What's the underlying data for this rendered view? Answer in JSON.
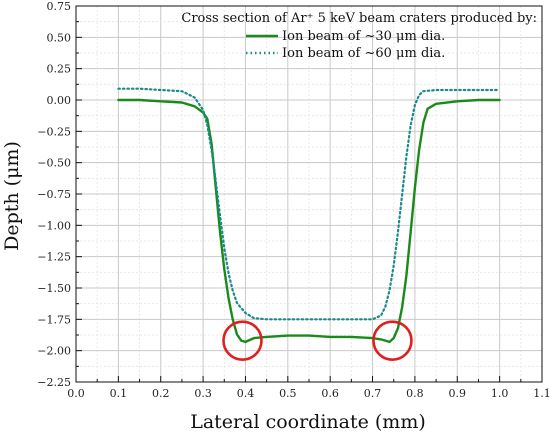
{
  "chart_data": {
    "type": "line",
    "title": "",
    "xlabel": "Lateral coordinate (mm)",
    "ylabel": "Depth (μm)",
    "xlim": [
      0.0,
      1.1
    ],
    "ylim": [
      -2.25,
      0.75
    ],
    "x_ticks": [
      "0.0",
      "0.1",
      "0.2",
      "0.3",
      "0.4",
      "0.5",
      "0.6",
      "0.7",
      "0.8",
      "0.9",
      "1.0",
      "1.1"
    ],
    "y_ticks": [
      "0.75",
      "0.50",
      "0.25",
      "0.00",
      "−0.25",
      "−0.50",
      "−0.75",
      "−1.00",
      "−1.25",
      "−1.50",
      "−1.75",
      "−2.00",
      "−2.25"
    ],
    "grid": true,
    "legend": {
      "title": "Cross section of Ar⁺ 5 keV beam craters produced by:",
      "placement": "top-right"
    },
    "series": [
      {
        "name": "Ion beam of ~30 μm dia.",
        "color": "#1a8a1a",
        "style": "solid",
        "x": [
          0.1,
          0.15,
          0.2,
          0.25,
          0.28,
          0.3,
          0.31,
          0.32,
          0.33,
          0.34,
          0.35,
          0.36,
          0.37,
          0.38,
          0.39,
          0.4,
          0.42,
          0.45,
          0.5,
          0.55,
          0.6,
          0.65,
          0.7,
          0.72,
          0.74,
          0.75,
          0.76,
          0.77,
          0.78,
          0.79,
          0.8,
          0.81,
          0.82,
          0.83,
          0.85,
          0.9,
          0.95,
          1.0
        ],
        "y": [
          0.0,
          0.0,
          -0.01,
          -0.02,
          -0.05,
          -0.1,
          -0.15,
          -0.35,
          -0.7,
          -1.05,
          -1.35,
          -1.58,
          -1.75,
          -1.87,
          -1.92,
          -1.93,
          -1.9,
          -1.89,
          -1.88,
          -1.88,
          -1.89,
          -1.89,
          -1.9,
          -1.91,
          -1.93,
          -1.9,
          -1.82,
          -1.65,
          -1.4,
          -1.05,
          -0.7,
          -0.4,
          -0.18,
          -0.07,
          -0.03,
          -0.01,
          0.0,
          0.0
        ]
      },
      {
        "name": "Ion beam of ~60 μm dia.",
        "color": "#1a8a8a",
        "style": "dotted",
        "x": [
          0.1,
          0.15,
          0.2,
          0.25,
          0.28,
          0.3,
          0.31,
          0.32,
          0.33,
          0.34,
          0.35,
          0.36,
          0.37,
          0.38,
          0.4,
          0.42,
          0.45,
          0.5,
          0.55,
          0.6,
          0.65,
          0.7,
          0.72,
          0.73,
          0.74,
          0.75,
          0.76,
          0.77,
          0.78,
          0.79,
          0.8,
          0.81,
          0.82,
          0.85,
          0.9,
          0.95,
          1.0
        ],
        "y": [
          0.09,
          0.09,
          0.08,
          0.07,
          0.02,
          -0.08,
          -0.2,
          -0.4,
          -0.65,
          -0.92,
          -1.18,
          -1.38,
          -1.52,
          -1.62,
          -1.7,
          -1.74,
          -1.75,
          -1.75,
          -1.75,
          -1.75,
          -1.75,
          -1.75,
          -1.72,
          -1.65,
          -1.52,
          -1.32,
          -1.05,
          -0.75,
          -0.45,
          -0.2,
          -0.04,
          0.04,
          0.07,
          0.08,
          0.08,
          0.08,
          0.08
        ]
      }
    ],
    "annotations": [
      {
        "type": "circle",
        "x": 0.393,
        "y": -1.92,
        "color": "#e02020"
      },
      {
        "type": "circle",
        "x": 0.747,
        "y": -1.92,
        "color": "#e02020"
      }
    ]
  }
}
